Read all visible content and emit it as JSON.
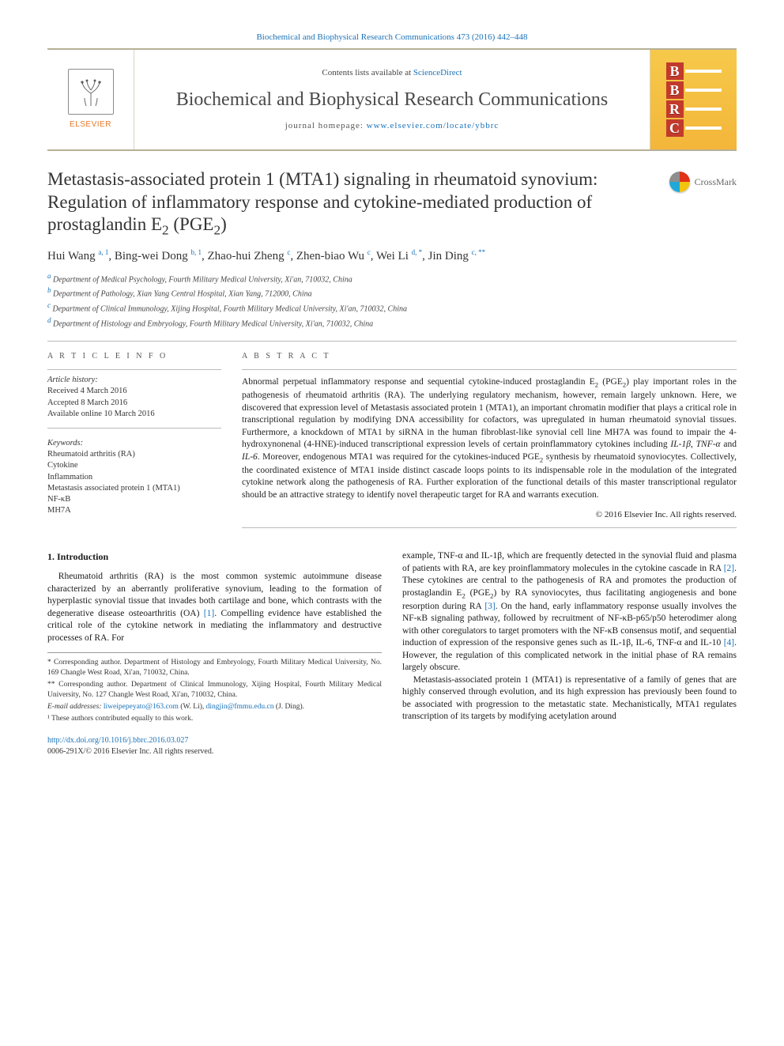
{
  "journal": {
    "top_citation": "Biochemical and Biophysical Research Communications 473 (2016) 442–448",
    "contents_prefix": "Contents lists available at ",
    "contents_link_text": "ScienceDirect",
    "name": "Biochemical and Biophysical Research Communications",
    "homepage_prefix": "journal homepage: ",
    "homepage_url": "www.elsevier.com/locate/ybbrc",
    "publisher_label": "ELSEVIER",
    "bbrc_letters": [
      "B",
      "B",
      "R",
      "C"
    ]
  },
  "crossmark_label": "CrossMark",
  "title_html": "Metastasis-associated protein 1 (MTA1) signaling in rheumatoid synovium: Regulation of inflammatory response and cytokine-mediated production of prostaglandin E<sub>2</sub> (PGE<sub>2</sub>)",
  "authors_html": "Hui Wang <sup>a, 1</sup>, Bing-wei Dong <sup>b, 1</sup>, Zhao-hui Zheng <sup>c</sup>, Zhen-biao Wu <sup>c</sup>, Wei Li <sup>d, *</sup>, Jin Ding <sup>c, **</sup>",
  "affiliations": [
    {
      "marker": "a",
      "text": "Department of Medical Psychology, Fourth Military Medical University, Xi'an, 710032, China"
    },
    {
      "marker": "b",
      "text": "Department of Pathology, Xian Yang Central Hospital, Xian Yang, 712000, China"
    },
    {
      "marker": "c",
      "text": "Department of Clinical Immunology, Xijing Hospital, Fourth Military Medical University, Xi'an, 710032, China"
    },
    {
      "marker": "d",
      "text": "Department of Histology and Embryology, Fourth Military Medical University, Xi'an, 710032, China"
    }
  ],
  "article_info": {
    "heading": "A R T I C L E  I N F O",
    "history_label": "Article history:",
    "history_lines": [
      "Received 4 March 2016",
      "Accepted 8 March 2016",
      "Available online 10 March 2016"
    ],
    "keywords_label": "Keywords:",
    "keywords": [
      "Rheumatoid arthritis (RA)",
      "Cytokine",
      "Inflammation",
      "Metastasis associated protein 1 (MTA1)",
      "NF-κB",
      "MH7A"
    ]
  },
  "abstract": {
    "heading": "A B S T R A C T",
    "text_html": "Abnormal perpetual inflammatory response and sequential cytokine-induced prostaglandin E<sub>2</sub> (PGE<sub>2</sub>) play important roles in the pathogenesis of rheumatoid arthritis (RA). The underlying regulatory mechanism, however, remain largely unknown. Here, we discovered that expression level of Metastasis associated protein 1 (MTA1), an important chromatin modifier that plays a critical role in transcriptional regulation by modifying DNA accessibility for cofactors, was upregulated in human rheumatoid synovial tissues. Furthermore, a knockdown of MTA1 by siRNA in the human fibroblast-like synovial cell line MH7A was found to impair the 4-hydroxynonenal (4-HNE)-induced transcriptional expression levels of certain proinflammatory cytokines including <i>IL-1β</i>, <i>TNF-α</i> and <i>IL-6</i>. Moreover, endogenous MTA1 was required for the cytokines-induced PGE<sub>2</sub> synthesis by rheumatoid synoviocytes. Collectively, the coordinated existence of MTA1 inside distinct cascade loops points to its indispensable role in the modulation of the integrated cytokine network along the pathogenesis of RA. Further exploration of the functional details of this master transcriptional regulator should be an attractive strategy to identify novel therapeutic target for RA and warrants execution.",
    "copyright": "© 2016 Elsevier Inc. All rights reserved."
  },
  "intro": {
    "heading": "1. Introduction",
    "p1_html": "Rheumatoid arthritis (RA) is the most common systemic autoimmune disease characterized by an aberrantly proliferative synovium, leading to the formation of hyperplastic synovial tissue that invades both cartilage and bone, which contrasts with the degenerative disease osteoarthritis (OA) <span class=\"ref-link\">[1]</span>. Compelling evidence have established the critical role of the cytokine network in mediating the inflammatory and destructive processes of RA. For",
    "p2_html": "example, TNF-α and IL-1β, which are frequently detected in the synovial fluid and plasma of patients with RA, are key proinflammatory molecules in the cytokine cascade in RA <span class=\"ref-link\">[2]</span>. These cytokines are central to the pathogenesis of RA and promotes the production of prostaglandin E<sub>2</sub> (PGE<sub>2</sub>) by RA synoviocytes, thus facilitating angiogenesis and bone resorption during RA <span class=\"ref-link\">[3]</span>. On the hand, early inflammatory response usually involves the NF-κB signaling pathway, followed by recruitment of NF-κB-p65/p50 heterodimer along with other coregulators to target promoters with the NF-κB consensus motif, and sequential induction of expression of the responsive genes such as IL-1β, IL-6, TNF-α and IL-10 <span class=\"ref-link\">[4]</span>. However, the regulation of this complicated network in the initial phase of RA remains largely obscure.",
    "p3_html": "Metastasis-associated protein 1 (MTA1) is representative of a family of genes that are highly conserved through evolution, and its high expression has previously been found to be associated with progression to the metastatic state. Mechanistically, MTA1 regulates transcription of its targets by modifying acetylation around"
  },
  "footnotes": {
    "corr1": "* Corresponding author. Department of Histology and Embryology, Fourth Military Medical University, No. 169 Changle West Road, Xi'an, 710032, China.",
    "corr2": "** Corresponding author. Department of Clinical Immunology, Xijing Hospital, Fourth Military Medical University, No. 127 Changle West Road, Xi'an, 710032, China.",
    "email_label": "E-mail addresses:",
    "email1": "liweipepeyato@163.com",
    "email1_who": "(W. Li),",
    "email2": "dingjin@fmmu.edu.cn",
    "email2_who": "(J. Ding).",
    "equal": "¹ These authors contributed equally to this work."
  },
  "doi": {
    "url": "http://dx.doi.org/10.1016/j.bbrc.2016.03.027",
    "line2": "0006-291X/© 2016 Elsevier Inc. All rights reserved."
  },
  "colors": {
    "link": "#1b72b8",
    "masthead_border": "#b7b097",
    "bbrc_letter_bg": "#c23a2c",
    "logo_right_bg_top": "#f6c94a",
    "logo_right_bg_bottom": "#f3b63a"
  }
}
